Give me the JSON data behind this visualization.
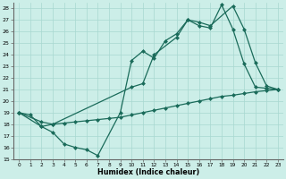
{
  "xlabel": "Humidex (Indice chaleur)",
  "xlim": [
    -0.5,
    23.5
  ],
  "ylim": [
    15,
    28.5
  ],
  "xticks": [
    0,
    1,
    2,
    3,
    4,
    5,
    6,
    7,
    8,
    9,
    10,
    11,
    12,
    13,
    14,
    15,
    16,
    17,
    18,
    19,
    20,
    21,
    22,
    23
  ],
  "yticks": [
    15,
    16,
    17,
    18,
    19,
    20,
    21,
    22,
    23,
    24,
    25,
    26,
    27,
    28
  ],
  "bg_color": "#cceee8",
  "line_color": "#1a6b5a",
  "line1_x": [
    0,
    1,
    2,
    3,
    4,
    5,
    6,
    7,
    9,
    10,
    11,
    12,
    13,
    14,
    15,
    16,
    17,
    18,
    19,
    20,
    21,
    22,
    23
  ],
  "line1_y": [
    19,
    18.8,
    17.8,
    17.3,
    16.3,
    16.0,
    15.8,
    15.3,
    19.0,
    23.5,
    24.3,
    23.7,
    25.2,
    25.8,
    27.0,
    26.5,
    26.3,
    28.3,
    26.2,
    23.2,
    21.2,
    21.1,
    21.0
  ],
  "line2_x": [
    0,
    2,
    3,
    10,
    11,
    12,
    14,
    15,
    16,
    17,
    19,
    20,
    21,
    22,
    23
  ],
  "line2_y": [
    19,
    17.8,
    18.0,
    21.2,
    21.5,
    24.0,
    25.5,
    27.0,
    26.8,
    26.5,
    28.2,
    26.2,
    23.3,
    21.3,
    21.0
  ],
  "line3_x": [
    0,
    2,
    3,
    4,
    5,
    6,
    7,
    8,
    9,
    10,
    11,
    12,
    13,
    14,
    15,
    16,
    17,
    18,
    19,
    20,
    21,
    22,
    23
  ],
  "line3_y": [
    19,
    18.2,
    18.0,
    18.1,
    18.2,
    18.3,
    18.4,
    18.5,
    18.6,
    18.8,
    19.0,
    19.2,
    19.4,
    19.6,
    19.8,
    20.0,
    20.2,
    20.4,
    20.5,
    20.65,
    20.8,
    20.9,
    21.0
  ]
}
